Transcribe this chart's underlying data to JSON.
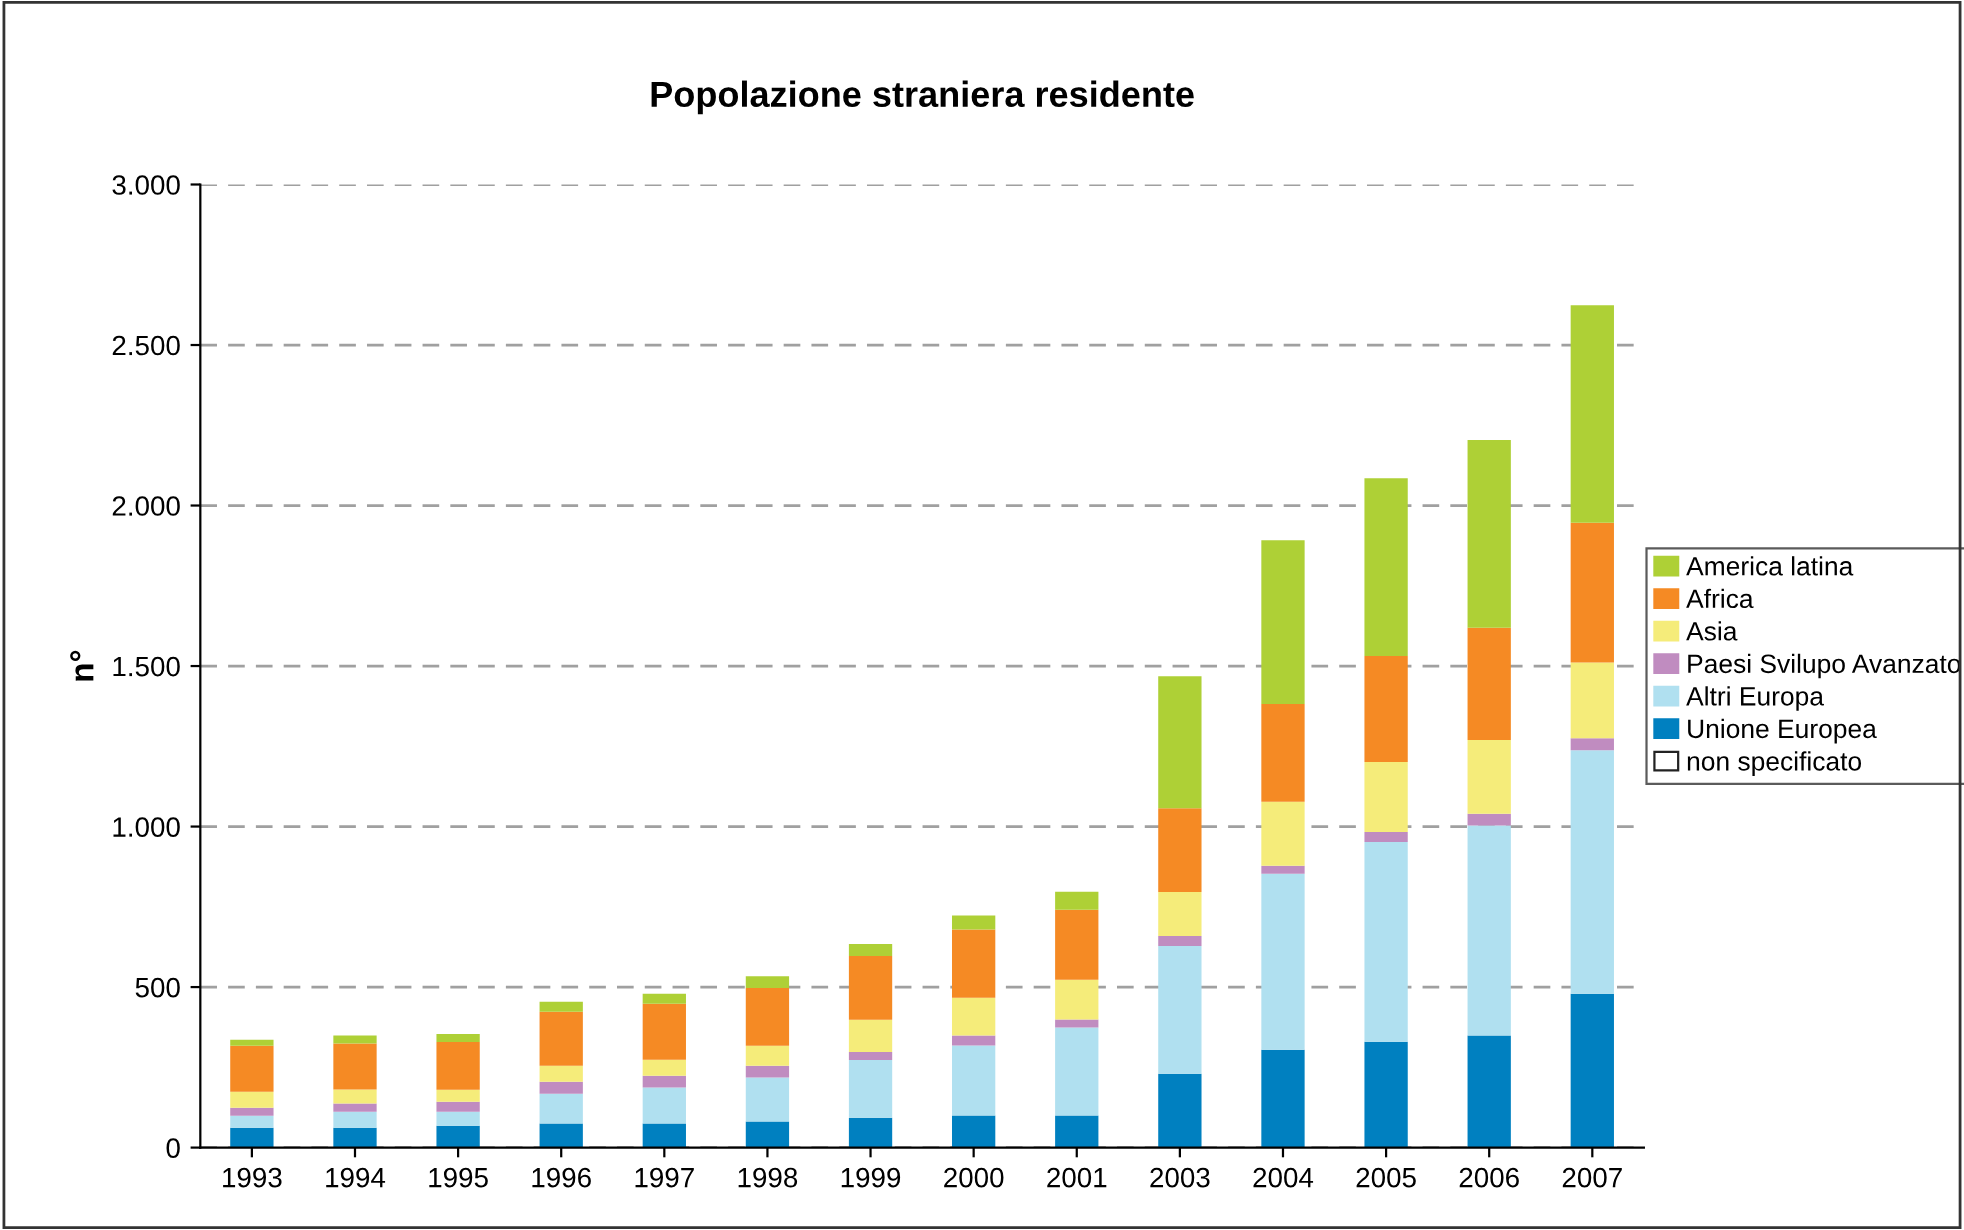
{
  "chart_data": {
    "type": "bar",
    "title": "Popolazione straniera residente",
    "ylabel": "n°",
    "stacked": true,
    "categories": [
      "1993",
      "1994",
      "1995",
      "1996",
      "1997",
      "1998",
      "1999",
      "2000",
      "2001",
      "2003",
      "2004",
      "2005",
      "2006",
      "2007"
    ],
    "series": [
      {
        "name": "non specificato",
        "color": "#ffffff",
        "values": [
          0,
          0,
          0,
          0,
          0,
          0,
          0,
          0,
          0,
          0,
          0,
          0,
          0,
          0
        ]
      },
      {
        "name": "Unione Europea",
        "color": "#0080c0",
        "values": [
          62,
          62,
          68,
          75,
          75,
          81,
          93,
          100,
          100,
          230,
          305,
          330,
          349,
          479
        ]
      },
      {
        "name": "Altri Europa",
        "color": "#b0e0f0",
        "values": [
          37,
          50,
          44,
          93,
          112,
          137,
          180,
          218,
          274,
          398,
          548,
          622,
          654,
          759
        ]
      },
      {
        "name": "Paesi Svilupo Avanzato",
        "color": "#c08cc0",
        "values": [
          25,
          25,
          31,
          37,
          37,
          37,
          25,
          31,
          25,
          31,
          25,
          31,
          37,
          37
        ]
      },
      {
        "name": "Asia",
        "color": "#f5ec7a",
        "values": [
          50,
          44,
          37,
          50,
          50,
          62,
          100,
          118,
          124,
          137,
          199,
          218,
          230,
          236
        ]
      },
      {
        "name": "Africa",
        "color": "#f58a24",
        "values": [
          143,
          143,
          149,
          168,
          174,
          180,
          199,
          212,
          218,
          261,
          305,
          330,
          349,
          435
        ]
      },
      {
        "name": "America latina",
        "color": "#aed036",
        "values": [
          19,
          25,
          25,
          31,
          31,
          37,
          37,
          44,
          56,
          411,
          510,
          554,
          585,
          678
        ]
      }
    ],
    "ylim": [
      0,
      3000
    ],
    "yticks": [
      {
        "value": 0,
        "label": "0"
      },
      {
        "value": 500,
        "label": "500"
      },
      {
        "value": 1000,
        "label": "1.000"
      },
      {
        "value": 1500,
        "label": "1.500"
      },
      {
        "value": 2000,
        "label": "2.000"
      },
      {
        "value": 2500,
        "label": "2.500"
      },
      {
        "value": 3000,
        "label": "3.000"
      }
    ],
    "grid": "y",
    "legend": "right"
  }
}
